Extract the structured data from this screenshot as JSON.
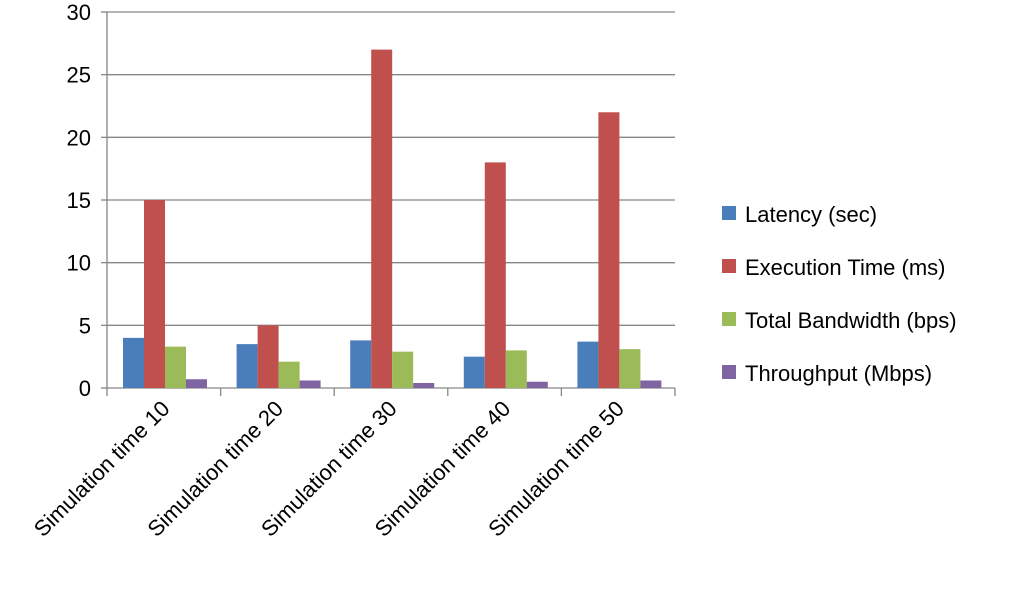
{
  "chart_data": {
    "type": "bar",
    "categories": [
      "Simulation time 10",
      "Simulation time 20",
      "Simulation time 30",
      "Simulation time 40",
      "Simulation time 50"
    ],
    "series": [
      {
        "name": "Latency (sec)",
        "color": "#4a7ebb",
        "values": [
          4.0,
          3.5,
          3.8,
          2.5,
          3.7
        ]
      },
      {
        "name": "Execution Time (ms)",
        "color": "#c0504d",
        "values": [
          15,
          5,
          27,
          18,
          22
        ]
      },
      {
        "name": "Total Bandwidth (bps)",
        "color": "#9bbb59",
        "values": [
          3.3,
          2.1,
          2.9,
          3.0,
          3.1
        ]
      },
      {
        "name": "Throughput (Mbps)",
        "color": "#8064a2",
        "values": [
          0.7,
          0.6,
          0.4,
          0.5,
          0.6
        ]
      }
    ],
    "ylim": [
      0,
      30
    ],
    "yticks": [
      0,
      5,
      10,
      15,
      20,
      25,
      30
    ],
    "grid": true,
    "legend_position": "right"
  }
}
